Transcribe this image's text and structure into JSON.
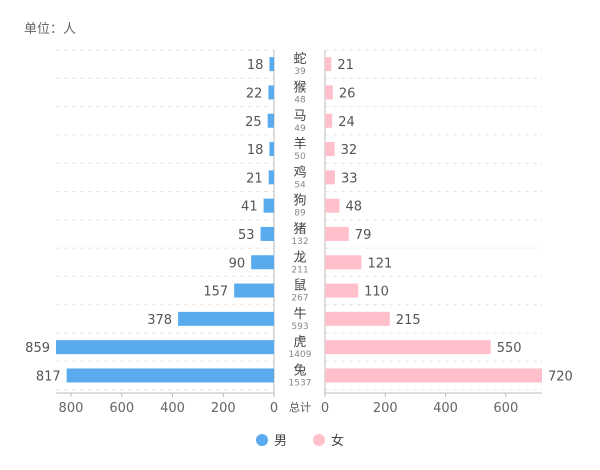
{
  "unit_label": "单位：人",
  "legend": [
    {
      "label": "男",
      "color": "#5aabee"
    },
    {
      "label": "女",
      "color": "#ffc0cb"
    }
  ],
  "chart_data": {
    "type": "bar",
    "orientation": "horizontal-butterfly",
    "categories": [
      "蛇",
      "猴",
      "马",
      "羊",
      "鸡",
      "狗",
      "猪",
      "龙",
      "鼠",
      "牛",
      "虎",
      "兔"
    ],
    "totals": [
      39,
      48,
      49,
      50,
      54,
      89,
      132,
      211,
      267,
      593,
      1409,
      1537
    ],
    "total_axis_label": "总计",
    "series": [
      {
        "name": "男",
        "values": [
          18,
          22,
          25,
          18,
          21,
          41,
          53,
          90,
          157,
          378,
          859,
          817
        ],
        "color": "#5aabee"
      },
      {
        "name": "女",
        "values": [
          21,
          26,
          24,
          32,
          33,
          48,
          79,
          121,
          110,
          215,
          550,
          720
        ],
        "color": "#ffc0cb"
      }
    ],
    "left_axis": {
      "ticks": [
        800,
        600,
        400,
        200,
        0
      ],
      "max": 859
    },
    "right_axis": {
      "ticks": [
        0,
        200,
        400,
        600
      ],
      "max": 720
    },
    "grid": true
  }
}
